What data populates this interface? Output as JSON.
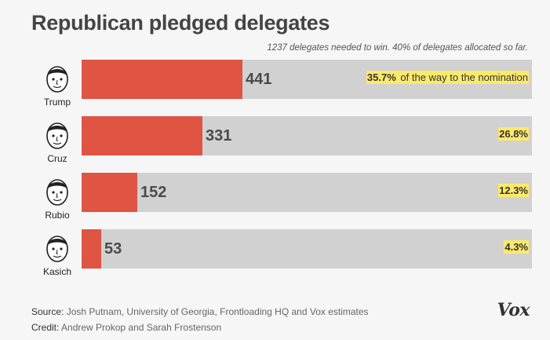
{
  "title": "Republican pledged delegates",
  "subtitle": "1237 delegates needed to win. 40% of delegates allocated so far.",
  "chart_data": {
    "type": "bar",
    "orientation": "horizontal",
    "title": "Republican pledged delegates",
    "categories": [
      "Trump",
      "Cruz",
      "Rubio",
      "Kasich"
    ],
    "values": [
      441,
      331,
      152,
      53
    ],
    "max": 1237,
    "percent_labels": [
      "35.7%",
      "26.8%",
      "12.3%",
      "4.3%"
    ],
    "annotation": "of the way to the nomination",
    "bar_color": "#e05444",
    "track_color": "#d1d1d1",
    "highlight_color": "#fbe96b"
  },
  "footer": {
    "source_label": "Source:",
    "source_text": "Josh Putnam, University of Georgia, Frontloading HQ and Vox estimates",
    "credit_label": "Credit:",
    "credit_text": "Andrew Prokop and Sarah Frostenson"
  },
  "logo": "Vox"
}
